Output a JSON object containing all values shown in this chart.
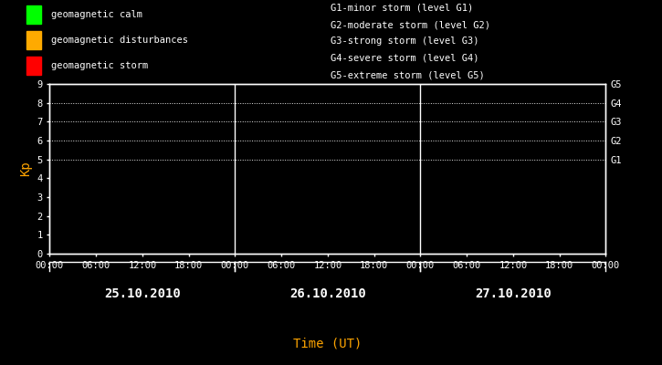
{
  "bg_color": "#000000",
  "text_color": "#ffffff",
  "orange_color": "#ffa500",
  "legend_items": [
    {
      "label": "geomagnetic calm",
      "color": "#00ff00"
    },
    {
      "label": "geomagnetic disturbances",
      "color": "#ffaa00"
    },
    {
      "label": "geomagnetic storm",
      "color": "#ff0000"
    }
  ],
  "right_legend": [
    "G1-minor storm (level G1)",
    "G2-moderate storm (level G2)",
    "G3-strong storm (level G3)",
    "G4-severe storm (level G4)",
    "G5-extreme storm (level G5)"
  ],
  "ylabel": "Kp",
  "xlabel": "Time (UT)",
  "ylim": [
    0,
    9
  ],
  "yticks": [
    0,
    1,
    2,
    3,
    4,
    5,
    6,
    7,
    8,
    9
  ],
  "days": [
    "25.10.2010",
    "26.10.2010",
    "27.10.2010"
  ],
  "time_ticks_labels": [
    "00:00",
    "06:00",
    "12:00",
    "18:00"
  ],
  "g_levels": [
    {
      "label": "G5",
      "y": 9
    },
    {
      "label": "G4",
      "y": 8
    },
    {
      "label": "G3",
      "y": 7
    },
    {
      "label": "G2",
      "y": 6
    },
    {
      "label": "G1",
      "y": 5
    }
  ],
  "dotted_levels": [
    5,
    6,
    7,
    8,
    9
  ],
  "num_days": 3,
  "hours_per_day": 24,
  "font_family": "monospace",
  "font_size_tick": 7.5,
  "font_size_label": 9,
  "font_size_legend": 7.5,
  "font_size_day": 10
}
